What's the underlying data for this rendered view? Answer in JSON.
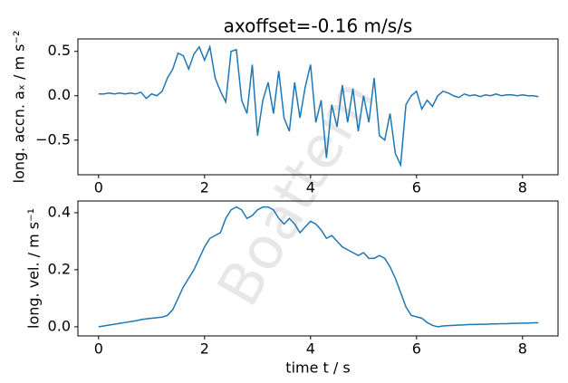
{
  "chart_data": [
    {
      "type": "line",
      "title": "axoffset=-0.16 m/s/s",
      "ylabel": "long. accn. aₓ / m s⁻²",
      "x": [
        0,
        0.1,
        0.2,
        0.3,
        0.4,
        0.5,
        0.6,
        0.7,
        0.8,
        0.9,
        1,
        1.1,
        1.2,
        1.3,
        1.4,
        1.5,
        1.6,
        1.7,
        1.8,
        1.9,
        2,
        2.1,
        2.2,
        2.3,
        2.4,
        2.5,
        2.6,
        2.7,
        2.8,
        2.9,
        3,
        3.1,
        3.2,
        3.3,
        3.4,
        3.5,
        3.6,
        3.7,
        3.8,
        3.9,
        4,
        4.1,
        4.2,
        4.3,
        4.4,
        4.5,
        4.6,
        4.7,
        4.8,
        4.9,
        5,
        5.1,
        5.2,
        5.3,
        5.4,
        5.5,
        5.6,
        5.7,
        5.8,
        5.9,
        6,
        6.1,
        6.2,
        6.3,
        6.4,
        6.5,
        6.6,
        6.7,
        6.8,
        6.9,
        7,
        7.1,
        7.2,
        7.3,
        7.4,
        7.5,
        7.6,
        7.7,
        7.8,
        7.9,
        8,
        8.1,
        8.2,
        8.3
      ],
      "series": [
        {
          "color": "#1f77b4",
          "values": [
            0.02,
            0.02,
            0.03,
            0.02,
            0.03,
            0.02,
            0.03,
            0.02,
            0.04,
            -0.03,
            0.02,
            0.0,
            0.05,
            0.2,
            0.3,
            0.48,
            0.45,
            0.3,
            0.47,
            0.55,
            0.4,
            0.55,
            0.2,
            0.05,
            -0.07,
            0.5,
            0.52,
            -0.05,
            -0.2,
            0.35,
            -0.45,
            -0.05,
            0.15,
            -0.2,
            0.28,
            -0.25,
            -0.4,
            0.15,
            -0.25,
            0.1,
            0.35,
            -0.3,
            -0.05,
            -0.7,
            -0.1,
            -0.35,
            0.12,
            -0.3,
            0.08,
            -0.4,
            0.0,
            -0.3,
            0.2,
            -0.45,
            -0.5,
            -0.2,
            -0.65,
            -0.78,
            -0.1,
            0.0,
            0.05,
            -0.15,
            -0.05,
            -0.12,
            0.0,
            0.05,
            0.03,
            0.0,
            -0.02,
            0.02,
            0.0,
            0.01,
            -0.01,
            0.01,
            0.0,
            0.02,
            0.0,
            0.01,
            0.01,
            0.0,
            0.01,
            0.0,
            0.0,
            -0.01
          ]
        }
      ],
      "xlim": [
        -0.39,
        8.67
      ],
      "xticks": [
        0,
        2,
        4,
        6,
        8
      ],
      "ylim": [
        -0.89,
        0.64
      ],
      "yticks": [
        0.5,
        {
          "value": 0,
          "label": "0.0"
        },
        {
          "value": -0.5,
          "label": "−0.5"
        }
      ]
    },
    {
      "type": "line",
      "ylabel": "long. vel. / m s⁻¹",
      "xlabel": "time t / s",
      "x": [
        0,
        0.1,
        0.2,
        0.3,
        0.4,
        0.5,
        0.6,
        0.7,
        0.8,
        0.9,
        1,
        1.1,
        1.2,
        1.3,
        1.4,
        1.5,
        1.6,
        1.7,
        1.8,
        1.9,
        2,
        2.1,
        2.2,
        2.3,
        2.4,
        2.5,
        2.6,
        2.7,
        2.8,
        2.9,
        3,
        3.1,
        3.2,
        3.3,
        3.4,
        3.5,
        3.6,
        3.7,
        3.8,
        3.9,
        4,
        4.1,
        4.2,
        4.3,
        4.4,
        4.5,
        4.6,
        4.7,
        4.8,
        4.9,
        5,
        5.1,
        5.2,
        5.3,
        5.4,
        5.5,
        5.6,
        5.7,
        5.8,
        5.9,
        6,
        6.1,
        6.2,
        6.3,
        6.4,
        6.5,
        6.6,
        6.7,
        6.8,
        6.9,
        7,
        7.1,
        7.2,
        7.3,
        7.4,
        7.5,
        7.6,
        7.7,
        7.8,
        7.9,
        8,
        8.1,
        8.2,
        8.3
      ],
      "series": [
        {
          "color": "#1f77b4",
          "values": [
            0.0,
            0.003,
            0.006,
            0.009,
            0.012,
            0.015,
            0.018,
            0.021,
            0.025,
            0.028,
            0.03,
            0.032,
            0.034,
            0.04,
            0.06,
            0.1,
            0.14,
            0.17,
            0.2,
            0.24,
            0.28,
            0.31,
            0.32,
            0.33,
            0.38,
            0.41,
            0.42,
            0.41,
            0.38,
            0.39,
            0.41,
            0.42,
            0.42,
            0.41,
            0.38,
            0.36,
            0.38,
            0.36,
            0.33,
            0.35,
            0.37,
            0.36,
            0.34,
            0.31,
            0.32,
            0.3,
            0.28,
            0.27,
            0.26,
            0.25,
            0.26,
            0.24,
            0.24,
            0.25,
            0.24,
            0.21,
            0.17,
            0.12,
            0.07,
            0.04,
            0.035,
            0.03,
            0.015,
            0.005,
            0.0,
            0.003,
            0.004,
            0.005,
            0.006,
            0.007,
            0.008,
            0.008,
            0.009,
            0.009,
            0.01,
            0.01,
            0.011,
            0.011,
            0.012,
            0.012,
            0.013,
            0.013,
            0.014,
            0.014
          ]
        }
      ],
      "xlim": [
        -0.39,
        8.67
      ],
      "xticks": [
        0,
        2,
        4,
        6,
        8
      ],
      "ylim": [
        -0.032,
        0.441
      ],
      "yticks": [
        0.4,
        0.2,
        {
          "value": 0,
          "label": "0.0"
        }
      ]
    }
  ],
  "watermark": "Boattem"
}
